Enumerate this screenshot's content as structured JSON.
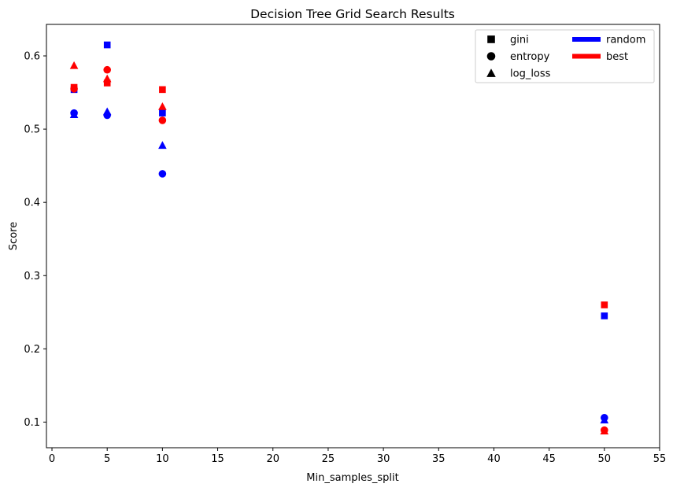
{
  "chart_data": {
    "type": "scatter",
    "title": "Decision Tree Grid Search Results",
    "xlabel": "Min_samples_split",
    "ylabel": "Score",
    "xlim": [
      -0.5,
      55
    ],
    "ylim": [
      0.065,
      0.643
    ],
    "xticks": [
      0,
      5,
      10,
      15,
      20,
      25,
      30,
      35,
      40,
      45,
      50,
      55
    ],
    "yticks": [
      0.1,
      0.2,
      0.3,
      0.4,
      0.5,
      0.6
    ],
    "grid": false,
    "legend_position": "top-right",
    "legend": {
      "markers": [
        {
          "label": "gini",
          "shape": "square"
        },
        {
          "label": "entropy",
          "shape": "circle"
        },
        {
          "label": "log_loss",
          "shape": "triangle"
        }
      ],
      "colors": [
        {
          "label": "random",
          "color": "#0000ff"
        },
        {
          "label": "best",
          "color": "#ff0000"
        }
      ]
    },
    "series": [
      {
        "criterion": "gini",
        "splitter": "random",
        "shape": "square",
        "color": "#0000ff",
        "x": [
          2,
          5,
          10,
          50
        ],
        "y": [
          0.554,
          0.615,
          0.522,
          0.245
        ]
      },
      {
        "criterion": "gini",
        "splitter": "best",
        "shape": "square",
        "color": "#ff0000",
        "x": [
          2,
          5,
          10,
          50
        ],
        "y": [
          0.557,
          0.563,
          0.554,
          0.26
        ]
      },
      {
        "criterion": "entropy",
        "splitter": "random",
        "shape": "circle",
        "color": "#0000ff",
        "x": [
          2,
          5,
          10,
          50
        ],
        "y": [
          0.522,
          0.519,
          0.439,
          0.106
        ]
      },
      {
        "criterion": "entropy",
        "splitter": "best",
        "shape": "circle",
        "color": "#ff0000",
        "x": [
          2,
          5,
          10,
          50
        ],
        "y": [
          0.555,
          0.581,
          0.512,
          0.089
        ]
      },
      {
        "criterion": "log_loss",
        "splitter": "random",
        "shape": "triangle",
        "color": "#0000ff",
        "x": [
          2,
          5,
          10,
          50
        ],
        "y": [
          0.52,
          0.524,
          0.478,
          0.103
        ]
      },
      {
        "criterion": "log_loss",
        "splitter": "best",
        "shape": "triangle",
        "color": "#ff0000",
        "x": [
          2,
          5,
          10,
          50
        ],
        "y": [
          0.587,
          0.569,
          0.531,
          0.088
        ]
      }
    ]
  }
}
